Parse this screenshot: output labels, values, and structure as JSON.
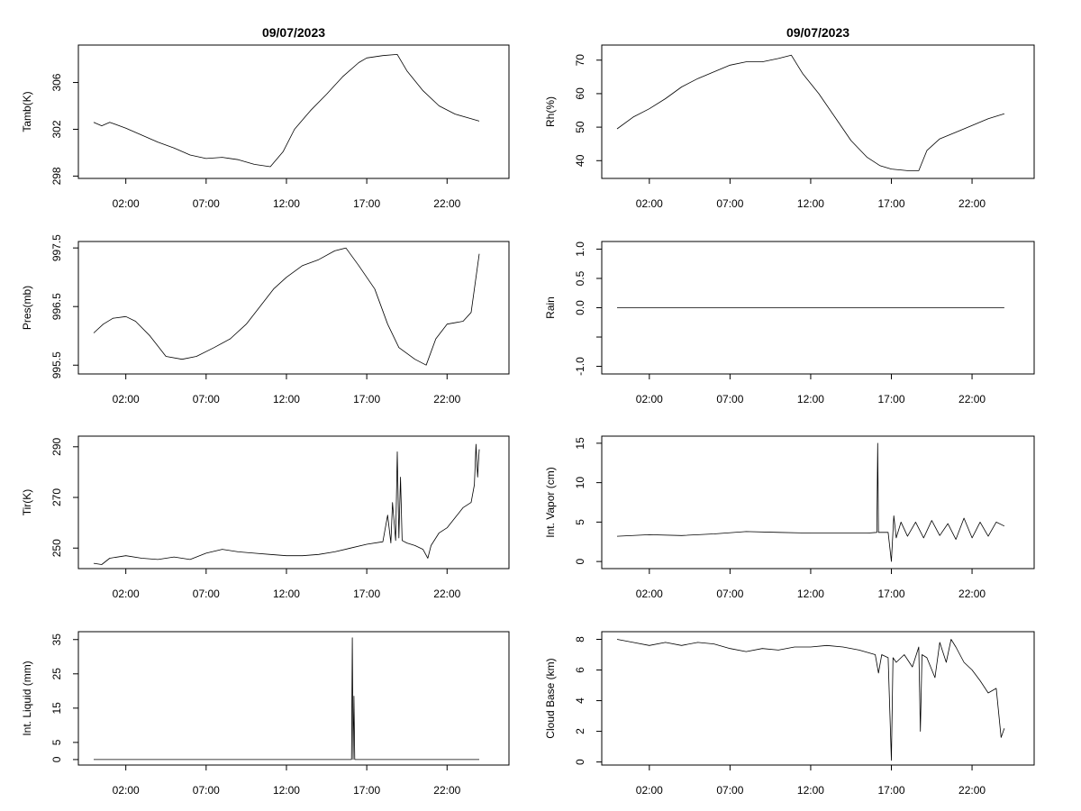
{
  "chart_data": [
    {
      "type": "line",
      "title": "09/07/2023",
      "ylabel": "Tamb(K)",
      "xlabel": "",
      "xlim": [
        0,
        24.9
      ],
      "ylim": [
        297.8,
        309.2
      ],
      "x_ticks": [
        {
          "value": 2,
          "label": "02:00"
        },
        {
          "value": 7,
          "label": "07:00"
        },
        {
          "value": 12,
          "label": "12:00"
        },
        {
          "value": 17,
          "label": "17:00"
        },
        {
          "value": 22,
          "label": "22:00"
        }
      ],
      "y_ticks": [
        {
          "value": 298,
          "label": "298"
        },
        {
          "value": 302,
          "label": "302"
        },
        {
          "value": 306,
          "label": "306"
        }
      ],
      "series": [
        {
          "name": "Tamb",
          "x": [
            0.0,
            0.5,
            1.0,
            2.0,
            3.0,
            4.0,
            5.0,
            6.0,
            7.0,
            8.0,
            9.0,
            10.0,
            11.0,
            11.8,
            12.5,
            13.5,
            14.5,
            15.5,
            16.5,
            17.0,
            18.0,
            18.9,
            19.5,
            20.5,
            21.5,
            22.5,
            23.5,
            24.0
          ],
          "y": [
            302.6,
            302.3,
            302.6,
            302.1,
            301.5,
            300.9,
            300.4,
            299.8,
            299.5,
            299.6,
            299.4,
            299.0,
            298.8,
            300.1,
            302.0,
            303.6,
            305.0,
            306.5,
            307.7,
            308.1,
            308.3,
            308.4,
            307.0,
            305.3,
            304.0,
            303.3,
            302.9,
            302.7
          ]
        }
      ]
    },
    {
      "type": "line",
      "title": "09/07/2023",
      "ylabel": "Rh(%)",
      "xlabel": "",
      "xlim": [
        0,
        24.9
      ],
      "ylim": [
        34.7,
        74.5
      ],
      "x_ticks": [
        {
          "value": 2,
          "label": "02:00"
        },
        {
          "value": 7,
          "label": "07:00"
        },
        {
          "value": 12,
          "label": "12:00"
        },
        {
          "value": 17,
          "label": "17:00"
        },
        {
          "value": 22,
          "label": "22:00"
        }
      ],
      "y_ticks": [
        {
          "value": 40,
          "label": "40"
        },
        {
          "value": 50,
          "label": "50"
        },
        {
          "value": 60,
          "label": "60"
        },
        {
          "value": 70,
          "label": "70"
        }
      ],
      "series": [
        {
          "name": "Rh",
          "x": [
            0.0,
            1.0,
            2.0,
            3.0,
            4.0,
            5.0,
            6.0,
            7.0,
            8.0,
            9.0,
            10.0,
            10.8,
            11.5,
            12.5,
            13.5,
            14.5,
            15.5,
            16.3,
            17.0,
            18.0,
            18.7,
            19.2,
            20.0,
            21.0,
            22.0,
            23.0,
            24.0
          ],
          "y": [
            49.5,
            53.0,
            55.5,
            58.5,
            62.0,
            64.5,
            66.5,
            68.5,
            69.5,
            69.5,
            70.5,
            71.5,
            66.0,
            60.0,
            53.0,
            46.0,
            41.0,
            38.5,
            37.5,
            37.0,
            37.0,
            43.0,
            46.5,
            48.5,
            50.5,
            52.5,
            54.0
          ]
        }
      ]
    },
    {
      "type": "line",
      "title": "",
      "ylabel": "Pres(mb)",
      "xlabel": "",
      "xlim": [
        0,
        24.9
      ],
      "ylim": [
        995.35,
        997.61
      ],
      "x_ticks": [
        {
          "value": 2,
          "label": "02:00"
        },
        {
          "value": 7,
          "label": "07:00"
        },
        {
          "value": 12,
          "label": "12:00"
        },
        {
          "value": 17,
          "label": "17:00"
        },
        {
          "value": 22,
          "label": "22:00"
        }
      ],
      "y_ticks": [
        {
          "value": 995.5,
          "label": "995.5"
        },
        {
          "value": 996.5,
          "label": "996.5"
        },
        {
          "value": 997.5,
          "label": "997.5"
        }
      ],
      "series": [
        {
          "name": "Pres",
          "x": [
            0.0,
            0.6,
            1.2,
            2.0,
            2.6,
            3.5,
            4.5,
            5.5,
            6.4,
            7.5,
            8.5,
            9.5,
            10.5,
            11.2,
            12.0,
            13.0,
            14.0,
            15.0,
            15.7,
            16.5,
            17.5,
            18.3,
            19.0,
            20.0,
            20.7,
            21.3,
            22.0,
            23.0,
            23.5,
            24.0
          ],
          "y": [
            996.05,
            996.2,
            996.3,
            996.33,
            996.25,
            996.0,
            995.65,
            995.6,
            995.65,
            995.8,
            995.95,
            996.2,
            996.55,
            996.8,
            997.0,
            997.2,
            997.3,
            997.45,
            997.5,
            997.2,
            996.8,
            996.2,
            995.8,
            995.6,
            995.5,
            995.95,
            996.2,
            996.25,
            996.4,
            997.4
          ]
        }
      ]
    },
    {
      "type": "line",
      "title": "",
      "ylabel": "Rain",
      "xlabel": "",
      "xlim": [
        0,
        24.9
      ],
      "ylim": [
        -1.13,
        1.13
      ],
      "x_ticks": [
        {
          "value": 2,
          "label": "02:00"
        },
        {
          "value": 7,
          "label": "07:00"
        },
        {
          "value": 12,
          "label": "12:00"
        },
        {
          "value": 17,
          "label": "17:00"
        },
        {
          "value": 22,
          "label": "22:00"
        }
      ],
      "y_ticks": [
        {
          "value": -1.0,
          "label": "-1.0"
        },
        {
          "value": -0.5,
          "label": ""
        },
        {
          "value": 0.0,
          "label": "0.0"
        },
        {
          "value": 0.5,
          "label": "0.5"
        },
        {
          "value": 1.0,
          "label": "1.0"
        }
      ],
      "series": [
        {
          "name": "Rain",
          "x": [
            0.0,
            24.0
          ],
          "y": [
            0.0,
            0.0
          ]
        }
      ]
    },
    {
      "type": "line",
      "title": "",
      "ylabel": "Tir(K)",
      "xlabel": "",
      "xlim": [
        0,
        24.9
      ],
      "ylim": [
        241.9,
        294.2
      ],
      "x_ticks": [
        {
          "value": 2,
          "label": "02:00"
        },
        {
          "value": 7,
          "label": "07:00"
        },
        {
          "value": 12,
          "label": "12:00"
        },
        {
          "value": 17,
          "label": "17:00"
        },
        {
          "value": 22,
          "label": "22:00"
        }
      ],
      "y_ticks": [
        {
          "value": 250,
          "label": "250"
        },
        {
          "value": 270,
          "label": "270"
        },
        {
          "value": 290,
          "label": "290"
        }
      ],
      "series": [
        {
          "name": "Tir",
          "x": [
            0.0,
            0.5,
            1.0,
            2.0,
            3.0,
            4.0,
            5.0,
            6.0,
            7.0,
            8.0,
            9.0,
            10.0,
            11.0,
            12.0,
            13.0,
            14.0,
            15.0,
            16.0,
            17.0,
            18.0,
            18.3,
            18.5,
            18.6,
            18.8,
            18.9,
            19.0,
            19.1,
            19.2,
            19.5,
            20.0,
            20.5,
            20.8,
            21.0,
            21.5,
            22.0,
            22.5,
            23.0,
            23.5,
            23.7,
            23.8,
            23.9,
            24.0
          ],
          "y": [
            244.0,
            243.5,
            246.0,
            247.0,
            246.0,
            245.5,
            246.5,
            245.5,
            248.0,
            249.5,
            248.5,
            248.0,
            247.5,
            247.0,
            247.0,
            247.5,
            248.5,
            250.0,
            251.5,
            252.5,
            263.0,
            252.0,
            268.0,
            253.0,
            288.0,
            254.0,
            278.0,
            253.0,
            252.0,
            251.0,
            249.5,
            246.0,
            251.0,
            256.0,
            258.0,
            262.0,
            266.0,
            268.0,
            275.0,
            291.0,
            278.0,
            289.0
          ]
        }
      ]
    },
    {
      "type": "line",
      "title": "",
      "ylabel": "Int. Vapor (cm)",
      "xlabel": "",
      "xlim": [
        0,
        24.9
      ],
      "ylim": [
        -0.9,
        15.9
      ],
      "x_ticks": [
        {
          "value": 2,
          "label": "02:00"
        },
        {
          "value": 7,
          "label": "07:00"
        },
        {
          "value": 12,
          "label": "12:00"
        },
        {
          "value": 17,
          "label": "17:00"
        },
        {
          "value": 22,
          "label": "22:00"
        }
      ],
      "y_ticks": [
        {
          "value": 0,
          "label": "0"
        },
        {
          "value": 5,
          "label": "5"
        },
        {
          "value": 10,
          "label": "10"
        },
        {
          "value": 15,
          "label": "15"
        }
      ],
      "series": [
        {
          "name": "Int. Vapor",
          "x": [
            0.0,
            2.0,
            4.0,
            6.0,
            8.0,
            10.0,
            12.0,
            14.0,
            15.5,
            16.1,
            16.15,
            16.2,
            16.3,
            16.8,
            17.0,
            17.15,
            17.3,
            17.6,
            18.0,
            18.5,
            19.0,
            19.5,
            20.0,
            20.5,
            21.0,
            21.5,
            22.0,
            22.5,
            23.0,
            23.5,
            24.0
          ],
          "y": [
            3.2,
            3.4,
            3.3,
            3.5,
            3.8,
            3.7,
            3.6,
            3.6,
            3.6,
            3.7,
            15.0,
            3.7,
            3.7,
            3.7,
            0.0,
            5.8,
            3.0,
            5.0,
            3.2,
            5.0,
            3.0,
            5.2,
            3.3,
            4.8,
            2.8,
            5.5,
            3.0,
            5.0,
            3.2,
            5.0,
            4.5
          ]
        }
      ]
    },
    {
      "type": "line",
      "title": "",
      "ylabel": "Int. Liquid (mm)",
      "xlabel": "",
      "xlim": [
        0,
        24.9
      ],
      "ylim": [
        -1.6,
        37.3
      ],
      "x_ticks": [
        {
          "value": 2,
          "label": "02:00"
        },
        {
          "value": 7,
          "label": "07:00"
        },
        {
          "value": 12,
          "label": "12:00"
        },
        {
          "value": 17,
          "label": "17:00"
        },
        {
          "value": 22,
          "label": "22:00"
        }
      ],
      "y_ticks": [
        {
          "value": 0,
          "label": "0"
        },
        {
          "value": 5,
          "label": "5"
        },
        {
          "value": 15,
          "label": "15"
        },
        {
          "value": 25,
          "label": "25"
        },
        {
          "value": 35,
          "label": "35"
        }
      ],
      "series": [
        {
          "name": "Int. Liquid",
          "x": [
            0.0,
            16.05,
            16.1,
            16.15,
            16.2,
            16.25,
            16.3,
            24.0
          ],
          "y": [
            0.0,
            0.0,
            35.5,
            0.0,
            18.5,
            0.0,
            0.0,
            0.0
          ]
        }
      ]
    },
    {
      "type": "line",
      "title": "",
      "ylabel": "Cloud Base (km)",
      "xlabel": "",
      "xlim": [
        0,
        24.9
      ],
      "ylim": [
        -0.2,
        8.5
      ],
      "x_ticks": [
        {
          "value": 2,
          "label": "02:00"
        },
        {
          "value": 7,
          "label": "07:00"
        },
        {
          "value": 12,
          "label": "12:00"
        },
        {
          "value": 17,
          "label": "17:00"
        },
        {
          "value": 22,
          "label": "22:00"
        }
      ],
      "y_ticks": [
        {
          "value": 0,
          "label": "0"
        },
        {
          "value": 2,
          "label": "2"
        },
        {
          "value": 4,
          "label": "4"
        },
        {
          "value": 6,
          "label": "6"
        },
        {
          "value": 8,
          "label": "8"
        }
      ],
      "series": [
        {
          "name": "Cloud Base",
          "x": [
            0.0,
            1.0,
            2.0,
            3.0,
            4.0,
            5.0,
            6.0,
            7.0,
            8.0,
            9.0,
            10.0,
            11.0,
            12.0,
            13.0,
            14.0,
            15.0,
            16.0,
            16.2,
            16.4,
            16.8,
            17.0,
            17.1,
            17.3,
            17.8,
            18.3,
            18.7,
            18.8,
            18.9,
            19.2,
            19.7,
            20.0,
            20.4,
            20.7,
            21.0,
            21.5,
            22.0,
            22.5,
            23.0,
            23.5,
            23.8,
            24.0
          ],
          "y": [
            8.0,
            7.8,
            7.6,
            7.8,
            7.6,
            7.8,
            7.7,
            7.4,
            7.2,
            7.4,
            7.3,
            7.5,
            7.5,
            7.6,
            7.5,
            7.3,
            7.0,
            5.8,
            7.0,
            6.8,
            0.1,
            6.8,
            6.5,
            7.0,
            6.2,
            7.5,
            2.0,
            7.0,
            6.8,
            5.5,
            7.8,
            6.5,
            8.0,
            7.5,
            6.5,
            6.0,
            5.3,
            4.5,
            4.8,
            1.6,
            2.2
          ]
        }
      ]
    }
  ]
}
